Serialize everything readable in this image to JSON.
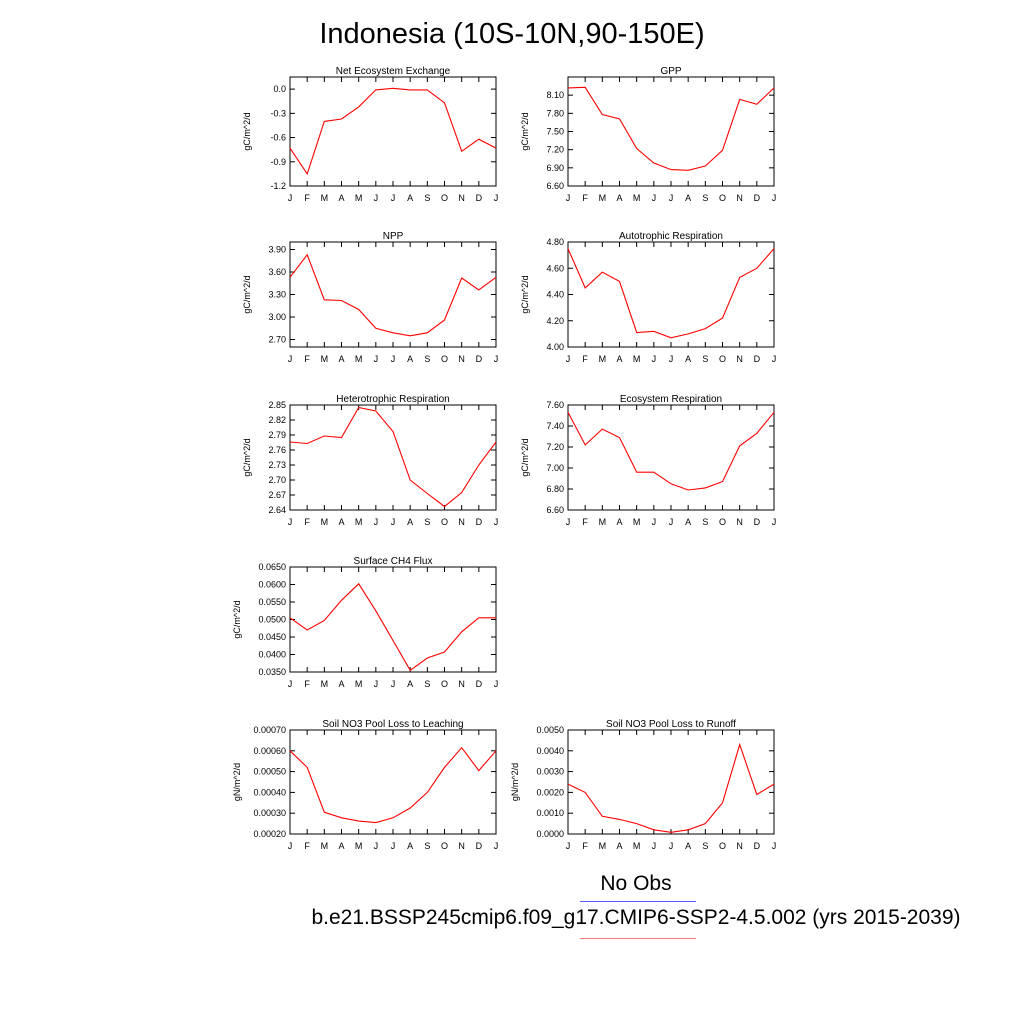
{
  "title": "Indonesia (10S-10N,90-150E)",
  "legend": {
    "obs_label": "No Obs",
    "obs_color": "#5a5aff",
    "case_label": "b.e21.BSSP245cmip6.f09_g17.CMIP6-SSP2-4.5.002 (yrs 2015-2039)",
    "case_color": "#ff7a7a"
  },
  "line_color": "#ff0000",
  "chart_data": [
    {
      "type": "line",
      "title": "Net Ecosystem Exchange",
      "ylabel": "gC/m^2/d",
      "categories": [
        "J",
        "F",
        "M",
        "A",
        "M",
        "J",
        "J",
        "A",
        "S",
        "O",
        "N",
        "D",
        "J"
      ],
      "ylim": [
        -1.2,
        0.15
      ],
      "yticks": [
        0.0,
        -0.3,
        -0.6,
        -0.9,
        -1.2
      ],
      "ytick_labels": [
        "0.0",
        "-0.3",
        "-0.6",
        "-0.9",
        "-1.2"
      ],
      "values": [
        -0.73,
        -1.05,
        -0.4,
        -0.37,
        -0.22,
        -0.01,
        0.01,
        -0.01,
        -0.01,
        -0.17,
        -0.77,
        -0.62,
        -0.73
      ]
    },
    {
      "type": "line",
      "title": "GPP",
      "ylabel": "gC/m^2/d",
      "categories": [
        "J",
        "F",
        "M",
        "A",
        "M",
        "J",
        "J",
        "A",
        "S",
        "O",
        "N",
        "D",
        "J"
      ],
      "ylim": [
        6.6,
        8.4
      ],
      "yticks": [
        8.1,
        7.8,
        7.5,
        7.2,
        6.9,
        6.6
      ],
      "ytick_labels": [
        "8.10",
        "7.80",
        "7.50",
        "7.20",
        "6.90",
        "6.60"
      ],
      "values": [
        8.22,
        8.23,
        7.78,
        7.71,
        7.22,
        6.98,
        6.87,
        6.86,
        6.93,
        7.19,
        8.03,
        7.95,
        8.22
      ]
    },
    {
      "type": "line",
      "title": "NPP",
      "ylabel": "gC/m^2/d",
      "categories": [
        "J",
        "F",
        "M",
        "A",
        "M",
        "J",
        "J",
        "A",
        "S",
        "O",
        "N",
        "D",
        "J"
      ],
      "ylim": [
        2.6,
        4.0
      ],
      "yticks": [
        3.9,
        3.6,
        3.3,
        3.0,
        2.7
      ],
      "ytick_labels": [
        "3.90",
        "3.60",
        "3.30",
        "3.00",
        "2.70"
      ],
      "values": [
        3.53,
        3.83,
        3.23,
        3.22,
        3.1,
        2.85,
        2.79,
        2.75,
        2.79,
        2.96,
        3.52,
        3.36,
        3.53
      ]
    },
    {
      "type": "line",
      "title": "Autotrophic Respiration",
      "ylabel": "gC/m^2/d",
      "categories": [
        "J",
        "F",
        "M",
        "A",
        "M",
        "J",
        "J",
        "A",
        "S",
        "O",
        "N",
        "D",
        "J"
      ],
      "ylim": [
        4.0,
        4.8
      ],
      "yticks": [
        4.8,
        4.6,
        4.4,
        4.2,
        4.0
      ],
      "ytick_labels": [
        "4.80",
        "4.60",
        "4.40",
        "4.20",
        "4.00"
      ],
      "values": [
        4.75,
        4.45,
        4.57,
        4.5,
        4.11,
        4.12,
        4.07,
        4.1,
        4.14,
        4.22,
        4.53,
        4.6,
        4.75
      ]
    },
    {
      "type": "line",
      "title": "Heterotrophic Respiration",
      "ylabel": "gC/m^2/d",
      "categories": [
        "J",
        "F",
        "M",
        "A",
        "M",
        "J",
        "J",
        "A",
        "S",
        "O",
        "N",
        "D",
        "J"
      ],
      "ylim": [
        2.64,
        2.85
      ],
      "yticks": [
        2.85,
        2.82,
        2.79,
        2.76,
        2.73,
        2.7,
        2.67,
        2.64
      ],
      "ytick_labels": [
        "2.85",
        "2.82",
        "2.79",
        "2.76",
        "2.73",
        "2.70",
        "2.67",
        "2.64"
      ],
      "values": [
        2.776,
        2.773,
        2.788,
        2.785,
        2.845,
        2.838,
        2.797,
        2.7,
        2.673,
        2.647,
        2.675,
        2.73,
        2.776
      ]
    },
    {
      "type": "line",
      "title": "Ecosystem Respiration",
      "ylabel": "gC/m^2/d",
      "categories": [
        "J",
        "F",
        "M",
        "A",
        "M",
        "J",
        "J",
        "A",
        "S",
        "O",
        "N",
        "D",
        "J"
      ],
      "ylim": [
        6.6,
        7.6
      ],
      "yticks": [
        7.6,
        7.4,
        7.2,
        7.0,
        6.8,
        6.6
      ],
      "ytick_labels": [
        "7.60",
        "7.40",
        "7.20",
        "7.00",
        "6.80",
        "6.60"
      ],
      "values": [
        7.53,
        7.22,
        7.37,
        7.29,
        6.96,
        6.96,
        6.85,
        6.79,
        6.81,
        6.87,
        7.21,
        7.33,
        7.53
      ]
    },
    {
      "type": "line",
      "title": "Surface CH4 Flux",
      "ylabel": "gC/m^2/d",
      "categories": [
        "J",
        "F",
        "M",
        "A",
        "M",
        "J",
        "J",
        "A",
        "S",
        "O",
        "N",
        "D",
        "J"
      ],
      "ylim": [
        0.035,
        0.065
      ],
      "yticks": [
        0.065,
        0.06,
        0.055,
        0.05,
        0.045,
        0.04,
        0.035
      ],
      "ytick_labels": [
        "0.0650",
        "0.0600",
        "0.0550",
        "0.0500",
        "0.0450",
        "0.0400",
        "0.0350"
      ],
      "values": [
        0.0505,
        0.047,
        0.0497,
        0.0555,
        0.0602,
        0.0525,
        0.044,
        0.0355,
        0.039,
        0.0407,
        0.0465,
        0.0505,
        0.0505
      ]
    },
    {
      "type": "line",
      "title": "Soil NO3 Pool Loss to Leaching",
      "ylabel": "gN/m^2/d",
      "categories": [
        "J",
        "F",
        "M",
        "A",
        "M",
        "J",
        "J",
        "A",
        "S",
        "O",
        "N",
        "D",
        "J"
      ],
      "ylim": [
        0.0002,
        0.0007
      ],
      "yticks": [
        0.0007,
        0.0006,
        0.0005,
        0.0004,
        0.0003,
        0.0002
      ],
      "ytick_labels": [
        "0.00070",
        "0.00060",
        "0.00050",
        "0.00040",
        "0.00030",
        "0.00020"
      ],
      "values": [
        0.0006,
        0.00052,
        0.000305,
        0.000278,
        0.000262,
        0.000255,
        0.000278,
        0.000325,
        0.0004,
        0.00052,
        0.000615,
        0.000505,
        0.0006
      ]
    },
    {
      "type": "line",
      "title": "Soil NO3 Pool Loss to Runoff",
      "ylabel": "gN/m^2/d",
      "categories": [
        "J",
        "F",
        "M",
        "A",
        "M",
        "J",
        "J",
        "A",
        "S",
        "O",
        "N",
        "D",
        "J"
      ],
      "ylim": [
        0.0,
        0.005
      ],
      "yticks": [
        0.005,
        0.004,
        0.003,
        0.002,
        0.001,
        0.0
      ],
      "ytick_labels": [
        "0.0050",
        "0.0040",
        "0.0030",
        "0.0020",
        "0.0010",
        "0.0000"
      ],
      "values": [
        0.0024,
        0.002,
        0.00085,
        0.0007,
        0.0005,
        0.0002,
        8e-05,
        0.0002,
        0.0005,
        0.0015,
        0.0043,
        0.0019,
        0.0024
      ]
    }
  ]
}
